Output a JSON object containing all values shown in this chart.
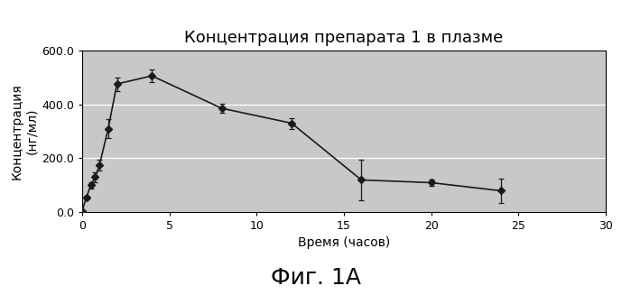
{
  "title": "Концентрация препарата 1 в плазме",
  "xlabel": "Время (часов)",
  "ylabel": "Концентрация\n(нг/мл)",
  "fig_label": "Фиг. 1А",
  "x": [
    0,
    0.25,
    0.5,
    0.75,
    1.0,
    1.5,
    2.0,
    4.0,
    8.0,
    12.0,
    16.0,
    20.0,
    24.0
  ],
  "y": [
    5.0,
    55.0,
    100.0,
    130.0,
    175.0,
    310.0,
    475.0,
    505.0,
    385.0,
    330.0,
    120.0,
    110.0,
    80.0
  ],
  "yerr": [
    3,
    8,
    12,
    18,
    20,
    35,
    25,
    22,
    18,
    20,
    75,
    12,
    45
  ],
  "xlim": [
    0,
    30
  ],
  "ylim": [
    0,
    600
  ],
  "xticks": [
    0,
    5,
    10,
    15,
    20,
    25,
    30
  ],
  "yticks": [
    0.0,
    200.0,
    400.0,
    600.0
  ],
  "ytick_labels": [
    "0.0",
    "200.0",
    "400.0",
    "600.0"
  ],
  "bg_color": "#c8c8c8",
  "line_color": "#1a1a1a",
  "marker": "D",
  "markersize": 4,
  "grid_color": "#ffffff",
  "title_fontsize": 13,
  "label_fontsize": 10,
  "tick_fontsize": 9,
  "figlabel_fontsize": 18
}
